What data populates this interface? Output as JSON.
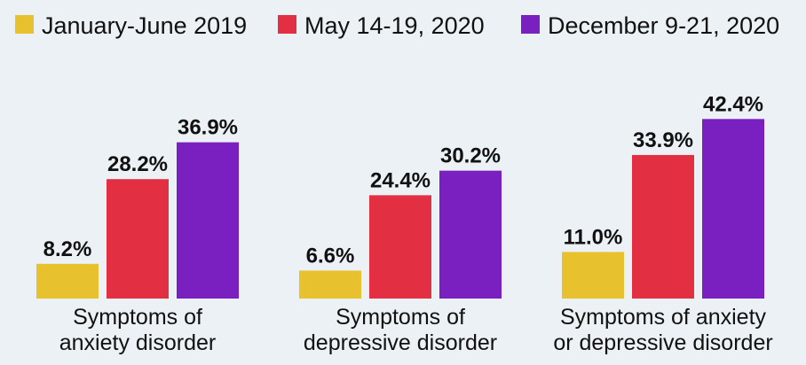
{
  "chart_data": {
    "type": "bar",
    "title": "",
    "xlabel": "",
    "ylabel": "",
    "ylim": [
      0,
      45
    ],
    "grid": false,
    "legend_position": "top",
    "value_suffix": "%",
    "categories": [
      [
        "Symptoms of",
        "anxiety disorder"
      ],
      [
        "Symptoms of",
        "depressive disorder"
      ],
      [
        "Symptoms of anxiety",
        "or depressive disorder"
      ]
    ],
    "series": [
      {
        "name": "January-June 2019",
        "color": "#e8c22e",
        "values": [
          8.2,
          6.6,
          11.0
        ]
      },
      {
        "name": "May 14-19, 2020",
        "color": "#e22f41",
        "values": [
          28.2,
          24.4,
          33.9
        ]
      },
      {
        "name": "December 9-21, 2020",
        "color": "#7a1fc0",
        "values": [
          36.9,
          30.2,
          42.4
        ]
      }
    ]
  }
}
